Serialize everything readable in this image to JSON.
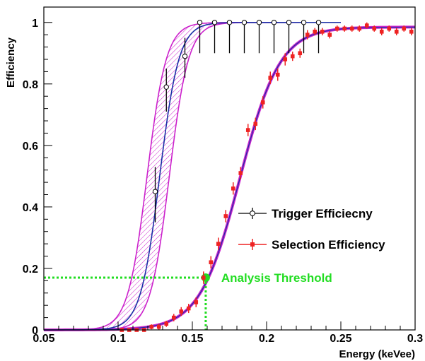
{
  "chart_data": {
    "type": "scatter",
    "title": "",
    "xlabel": "Energy (keVee)",
    "ylabel": "Efficiency",
    "xlim": [
      0.05,
      0.3
    ],
    "ylim": [
      0,
      1.05
    ],
    "xticks": [
      "0.05",
      "0.1",
      "0.15",
      "0.2",
      "0.25",
      "0.3"
    ],
    "yticks": [
      "0",
      "0.2",
      "0.4",
      "0.6",
      "0.8",
      "1"
    ],
    "grid": false,
    "legend_position": "center-right",
    "series": [
      {
        "name": "Trigger Efficiecny",
        "marker": "open-circle",
        "color": "#000000",
        "x": [
          0.125,
          0.1325,
          0.145,
          0.155,
          0.165,
          0.175,
          0.185,
          0.195,
          0.205,
          0.215,
          0.225,
          0.235
        ],
        "y": [
          0.45,
          0.79,
          0.89,
          1.0,
          1.0,
          1.0,
          1.0,
          1.0,
          1.0,
          1.0,
          1.0,
          1.0
        ],
        "yerr_low": [
          0.1,
          0.08,
          0.07,
          0.1,
          0.1,
          0.1,
          0.1,
          0.1,
          0.1,
          0.1,
          0.1,
          0.1
        ],
        "yerr_high": [
          0.08,
          0.06,
          0.06,
          0.0,
          0.0,
          0.0,
          0.0,
          0.0,
          0.0,
          0.0,
          0.0,
          0.0
        ],
        "fit": {
          "color": "#1a2fa6",
          "band_color": "#cc22cc",
          "x0": 0.128,
          "width": 0.0065,
          "band_x0_low": 0.1195,
          "band_x0_high": 0.1345,
          "fit_xmax": 0.25
        }
      },
      {
        "name": "Selection Efficiency",
        "marker": "filled-square",
        "color": "#ee2222",
        "x": [
          0.1025,
          0.1075,
          0.1125,
          0.1175,
          0.1225,
          0.1275,
          0.1325,
          0.1375,
          0.1425,
          0.1475,
          0.1525,
          0.1575,
          0.1625,
          0.1675,
          0.1725,
          0.1775,
          0.1825,
          0.1875,
          0.1925,
          0.1975,
          0.2025,
          0.2075,
          0.2125,
          0.2175,
          0.2225,
          0.2275,
          0.2325,
          0.2375,
          0.2425,
          0.2475,
          0.2525,
          0.2575,
          0.2625,
          0.2675,
          0.2725,
          0.2775,
          0.2825,
          0.2875,
          0.2925,
          0.2975
        ],
        "y": [
          0.0,
          0.0,
          0.0,
          0.0,
          0.01,
          0.01,
          0.02,
          0.04,
          0.06,
          0.07,
          0.09,
          0.17,
          0.22,
          0.28,
          0.37,
          0.46,
          0.51,
          0.65,
          0.67,
          0.74,
          0.82,
          0.83,
          0.88,
          0.89,
          0.9,
          0.96,
          0.97,
          0.97,
          0.96,
          0.98,
          0.98,
          0.98,
          0.98,
          0.99,
          0.98,
          0.97,
          0.98,
          0.97,
          0.98,
          0.97
        ],
        "yerr": [
          0.004,
          0.004,
          0.005,
          0.006,
          0.008,
          0.01,
          0.01,
          0.012,
          0.014,
          0.015,
          0.016,
          0.02,
          0.02,
          0.02,
          0.02,
          0.02,
          0.02,
          0.02,
          0.02,
          0.02,
          0.02,
          0.02,
          0.02,
          0.015,
          0.015,
          0.015,
          0.012,
          0.012,
          0.012,
          0.01,
          0.01,
          0.01,
          0.01,
          0.01,
          0.01,
          0.012,
          0.01,
          0.012,
          0.01,
          0.012
        ],
        "fit": {
          "color": "#1a2fa6",
          "band_color": "#cc22cc",
          "x0": 0.182,
          "width": 0.0135,
          "amplitude": 0.985
        }
      }
    ],
    "annotation": {
      "label": "Analysis Threshold",
      "color": "#22dd22",
      "x": 0.159,
      "y": 0.17
    }
  }
}
